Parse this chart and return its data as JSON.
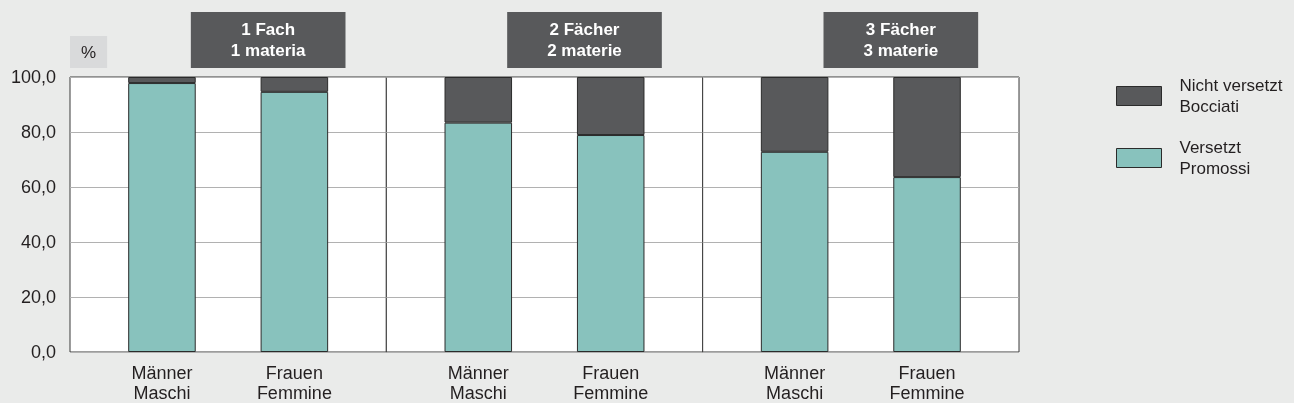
{
  "chart_data": [
    {
      "type": "bar",
      "title": "1 Fach\n1 materia",
      "ylabel": "%",
      "categories": [
        "Männer\nMaschi",
        "Frauen\nFemmine"
      ],
      "series": [
        {
          "color": "#88c2bd",
          "values": [
            97.8,
            94.6
          ]
        },
        {
          "color": "#58595b",
          "values": [
            2.2,
            5.4
          ]
        }
      ],
      "stacked": true,
      "ylim": [
        0,
        100
      ],
      "yticks": [
        {
          "value": 0,
          "label": "0,0"
        },
        {
          "value": 20,
          "label": "20,0"
        },
        {
          "value": 40,
          "label": "40,0"
        },
        {
          "value": 60,
          "label": "60,0"
        },
        {
          "value": 80,
          "label": "80,0"
        },
        {
          "value": 100,
          "label": "100,0"
        }
      ],
      "grid": "y"
    },
    {
      "type": "bar",
      "title": "2 Fächer\n2 materie",
      "categories": [
        "Männer\nMaschi",
        "Frauen\nFemmine"
      ],
      "series": [
        {
          "color": "#88c2bd",
          "values": [
            83.4,
            78.9
          ]
        },
        {
          "color": "#58595b",
          "values": [
            16.6,
            21.1
          ]
        }
      ],
      "stacked": true,
      "ylim": [
        0,
        100
      ],
      "yticks": [
        0,
        20,
        40,
        60,
        80,
        100
      ],
      "grid": "y",
      "tick_labels": "x"
    },
    {
      "type": "bar",
      "title": "3 Fächer\n3 materie",
      "categories": [
        "Männer\nMaschi",
        "Frauen\nFemmine"
      ],
      "series": [
        {
          "name": "Versetzt\nPromossi",
          "color": "#88c2bd",
          "values": [
            72.8,
            63.6
          ]
        },
        {
          "name": "Nicht versetzt\nBocciati",
          "color": "#58595b",
          "values": [
            27.2,
            36.4
          ]
        }
      ],
      "stacked": true,
      "ylim": [
        0,
        100
      ],
      "yticks": [
        0,
        20,
        40,
        60,
        80,
        100
      ],
      "grid": "y",
      "tick_labels": "x",
      "legend": "right"
    }
  ]
}
